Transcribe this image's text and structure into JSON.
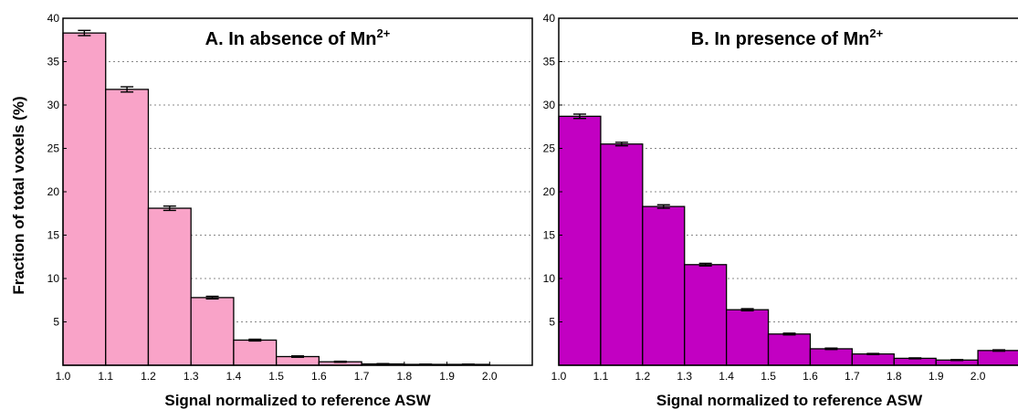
{
  "chart_data": [
    {
      "type": "bar",
      "title": "A. In absence of Mn",
      "title_sup": "2+",
      "xlabel": "Signal normalized to reference ASW",
      "ylabel": "Fraction of total voxels (%)",
      "bin_edges": [
        1.0,
        1.1,
        1.2,
        1.3,
        1.4,
        1.5,
        1.6,
        1.7,
        1.8,
        1.9,
        2.0
      ],
      "values": [
        38.3,
        31.8,
        18.1,
        7.8,
        2.9,
        1.0,
        0.4,
        0.15,
        0.1,
        0.1
      ],
      "errors": [
        0.3,
        0.3,
        0.25,
        0.15,
        0.1,
        0.08,
        0.06,
        0.04,
        0.03,
        0.03
      ],
      "xlim": [
        1.0,
        2.1
      ],
      "ylim": [
        0,
        40
      ],
      "xticks": [
        "1.0",
        "1.1",
        "1.2",
        "1.3",
        "1.4",
        "1.5",
        "1.6",
        "1.7",
        "1.8",
        "1.9",
        "2.0"
      ],
      "yticks": [
        "5",
        "10",
        "15",
        "20",
        "25",
        "30",
        "35",
        "40"
      ],
      "grid": "horizontal dotted",
      "color": "#f9a3c8"
    },
    {
      "type": "bar",
      "title": "B. In presence of Mn",
      "title_sup": "2+",
      "xlabel": "Signal normalized to reference ASW",
      "ylabel": "",
      "bin_edges": [
        1.0,
        1.1,
        1.2,
        1.3,
        1.4,
        1.5,
        1.6,
        1.7,
        1.8,
        1.9,
        2.0,
        2.1
      ],
      "values": [
        28.7,
        25.5,
        18.3,
        11.6,
        6.4,
        3.6,
        1.9,
        1.3,
        0.8,
        0.6,
        1.7
      ],
      "errors": [
        0.25,
        0.2,
        0.2,
        0.15,
        0.12,
        0.1,
        0.08,
        0.06,
        0.05,
        0.05,
        0.08
      ],
      "xlim": [
        1.0,
        2.1
      ],
      "ylim": [
        0,
        40
      ],
      "xticks": [
        "1.0",
        "1.1",
        "1.2",
        "1.3",
        "1.4",
        "1.5",
        "1.6",
        "1.7",
        "1.8",
        "1.9",
        "2.0"
      ],
      "yticks": [
        "5",
        "10",
        "15",
        "20",
        "25",
        "30",
        "35",
        "40"
      ],
      "grid": "horizontal dotted",
      "color": "#c200c2"
    }
  ]
}
